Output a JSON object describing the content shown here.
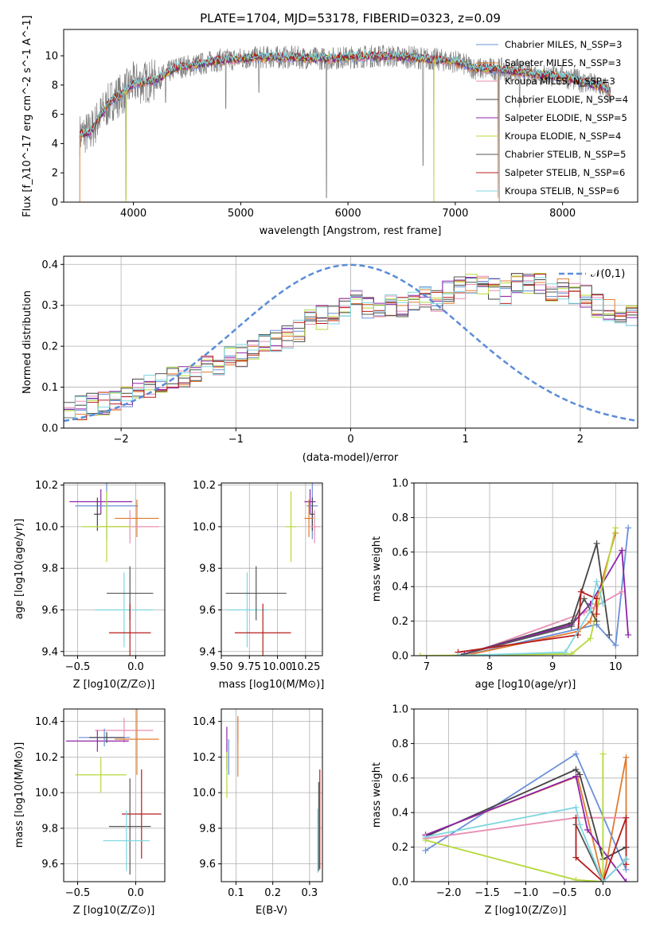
{
  "colors": {
    "chabrier_miles": "#6a8fd8",
    "salpeter_miles": "#e07b2e",
    "kroupa_miles": "#e88fb4",
    "chabrier_elodie": "#444444",
    "salpeter_elodie": "#8e24aa",
    "kroupa_elodie": "#b5d93a",
    "chabrier_stelib": "#555555",
    "salpeter_stelib": "#b71c1c",
    "kroupa_stelib": "#7fd6e0",
    "spectrum_data": "#808080",
    "normal_curve": "#5b8cd8",
    "grid": "#b0b0b0"
  },
  "chart_data": [
    {
      "id": "spectrum",
      "type": "line",
      "title": "PLATE=1704, MJD=53178, FIBERID=0323, z=0.09",
      "xlabel": "wavelength [Angstrom, rest frame]",
      "ylabel": "Flux [f_λ10^-17 erg cm^-2 s^-1 A^-1]",
      "xlim": [
        3350,
        8700
      ],
      "ylim": [
        0,
        11.8
      ],
      "xticks": [
        4000,
        5000,
        6000,
        7000,
        8000
      ],
      "yticks": [
        0,
        2,
        4,
        6,
        8,
        10
      ],
      "grid": false,
      "legend_position": "top-right",
      "series": [
        {
          "name": "Chabrier MILES, N_SSP=3",
          "color_key": "chabrier_miles"
        },
        {
          "name": "Salpeter MILES, N_SSP=3",
          "color_key": "salpeter_miles"
        },
        {
          "name": "Kroupa MILES, N_SSP=3",
          "color_key": "kroupa_miles"
        },
        {
          "name": "Chabrier ELODIE, N_SSP=4",
          "color_key": "chabrier_elodie"
        },
        {
          "name": "Salpeter ELODIE, N_SSP=5",
          "color_key": "salpeter_elodie"
        },
        {
          "name": "Kroupa ELODIE, N_SSP=4",
          "color_key": "kroupa_elodie"
        },
        {
          "name": "Chabrier STELIB, N_SSP=5",
          "color_key": "chabrier_stelib"
        },
        {
          "name": "Salpeter STELIB, N_SSP=6",
          "color_key": "salpeter_stelib"
        },
        {
          "name": "Kroupa STELIB, N_SSP=6",
          "color_key": "kroupa_stelib"
        }
      ],
      "continuum_points": [
        [
          3500,
          4.6
        ],
        [
          3600,
          4.8
        ],
        [
          3700,
          6.0
        ],
        [
          3800,
          7.0
        ],
        [
          3900,
          7.4
        ],
        [
          4000,
          8.1
        ],
        [
          4200,
          8.3
        ],
        [
          4400,
          9.2
        ],
        [
          4600,
          9.4
        ],
        [
          4800,
          9.7
        ],
        [
          5000,
          9.8
        ],
        [
          5200,
          9.9
        ],
        [
          5500,
          9.9
        ],
        [
          5800,
          9.8
        ],
        [
          6000,
          9.9
        ],
        [
          6300,
          10.0
        ],
        [
          6600,
          9.9
        ],
        [
          7000,
          9.6
        ],
        [
          7200,
          9.1
        ],
        [
          7400,
          9.1
        ],
        [
          7600,
          8.9
        ],
        [
          7800,
          8.7
        ],
        [
          8000,
          8.6
        ],
        [
          8200,
          8.2
        ],
        [
          8400,
          7.8
        ],
        [
          8450,
          7.4
        ]
      ],
      "absorption_dips": [
        [
          3930,
          0.2
        ],
        [
          4300,
          6.8
        ],
        [
          4860,
          6.4
        ],
        [
          5170,
          7.5
        ],
        [
          5800,
          0.3
        ],
        [
          6700,
          2.5
        ],
        [
          6800,
          0.2
        ],
        [
          7400,
          0.3
        ],
        [
          7600,
          6.5
        ]
      ]
    },
    {
      "id": "residuals",
      "type": "histogram",
      "xlabel": "(data-model)/error",
      "ylabel": "Normed distribution",
      "xlim": [
        -2.5,
        2.5
      ],
      "ylim": [
        0,
        0.42
      ],
      "xticks": [
        -2,
        -1,
        0,
        1,
        2
      ],
      "yticks": [
        0.0,
        0.1,
        0.2,
        0.3,
        0.4
      ],
      "grid": true,
      "legend_position": "top-right",
      "legend_label": "𝒩(0,1)",
      "bin_width": 0.1,
      "base_density": [
        0.05,
        0.05,
        0.06,
        0.06,
        0.07,
        0.08,
        0.09,
        0.1,
        0.11,
        0.12,
        0.13,
        0.14,
        0.15,
        0.16,
        0.17,
        0.18,
        0.19,
        0.2,
        0.21,
        0.22,
        0.24,
        0.26,
        0.27,
        0.28,
        0.3,
        0.31,
        0.29,
        0.28,
        0.3,
        0.3,
        0.31,
        0.32,
        0.31,
        0.33,
        0.34,
        0.35,
        0.35,
        0.34,
        0.33,
        0.35,
        0.35,
        0.35,
        0.33,
        0.34,
        0.33,
        0.32,
        0.3,
        0.29,
        0.28,
        0.27,
        0.26,
        0.24,
        0.22,
        0.21,
        0.2,
        0.19,
        0.17,
        0.15,
        0.14,
        0.13,
        0.12,
        0.11,
        0.1,
        0.09,
        0.08,
        0.08,
        0.07,
        0.06,
        0.05,
        0.05
      ]
    },
    {
      "id": "age_vs_Z",
      "type": "errorbar",
      "xlabel": "Z [log10(Z/Z⊙)]",
      "ylabel": "age [log10(age/yr)]",
      "xlim": [
        -0.62,
        0.25
      ],
      "ylim": [
        9.38,
        10.21
      ],
      "xticks": [
        -0.5,
        0.0
      ],
      "yticks": [
        9.4,
        9.6,
        9.8,
        10.0,
        10.2
      ],
      "grid": true,
      "points": [
        {
          "c": "salpeter_elodie",
          "x": -0.3,
          "xerr": 0.27,
          "y": 10.12,
          "yerr": 0.06
        },
        {
          "c": "chabrier_miles",
          "x": -0.25,
          "xerr": 0.27,
          "y": 10.1,
          "yerr": 0.16
        },
        {
          "c": "chabrier_elodie",
          "x": -0.33,
          "xerr": 0.03,
          "y": 10.06,
          "yerr": 0.08
        },
        {
          "c": "salpeter_miles",
          "x": 0.01,
          "xerr": 0.19,
          "y": 10.04,
          "yerr": 0.09
        },
        {
          "c": "kroupa_miles",
          "x": -0.05,
          "xerr": 0.25,
          "y": 10.0,
          "yerr": 0.08
        },
        {
          "c": "kroupa_elodie",
          "x": -0.25,
          "xerr": 0.22,
          "y": 10.0,
          "yerr": 0.17
        },
        {
          "c": "kroupa_stelib",
          "x": -0.1,
          "xerr": 0.25,
          "y": 9.6,
          "yerr": 0.18
        },
        {
          "c": "chabrier_stelib",
          "x": -0.05,
          "xerr": 0.2,
          "y": 9.68,
          "yerr": 0.13
        },
        {
          "c": "salpeter_stelib",
          "x": -0.05,
          "xerr": 0.18,
          "y": 9.49,
          "yerr": 0.14
        }
      ]
    },
    {
      "id": "age_vs_mass",
      "type": "errorbar",
      "xlabel": "mass [log10(M/M⊙)]",
      "ylabel": "",
      "xlim": [
        9.5,
        10.4
      ],
      "ylim": [
        9.38,
        10.21
      ],
      "xticks": [
        9.5,
        9.75,
        10.0,
        10.25
      ],
      "xticklabels": [
        "9.50",
        "9.75",
        "10.00",
        "10.25"
      ],
      "yticks": [
        9.4,
        9.6,
        9.8,
        10.0,
        10.2
      ],
      "grid": true,
      "points": [
        {
          "c": "salpeter_elodie",
          "x": 10.29,
          "xerr": 0.05,
          "y": 10.12,
          "yerr": 0.06
        },
        {
          "c": "chabrier_miles",
          "x": 10.31,
          "xerr": 0.05,
          "y": 10.1,
          "yerr": 0.16
        },
        {
          "c": "chabrier_elodie",
          "x": 10.31,
          "xerr": 0.02,
          "y": 10.06,
          "yerr": 0.08
        },
        {
          "c": "salpeter_miles",
          "x": 10.28,
          "xerr": 0.04,
          "y": 10.04,
          "yerr": 0.09
        },
        {
          "c": "kroupa_miles",
          "x": 10.33,
          "xerr": 0.05,
          "y": 10.0,
          "yerr": 0.08
        },
        {
          "c": "kroupa_elodie",
          "x": 10.12,
          "xerr": 0.05,
          "y": 10.0,
          "yerr": 0.17
        },
        {
          "c": "kroupa_stelib",
          "x": 9.73,
          "xerr": 0.18,
          "y": 9.6,
          "yerr": 0.18
        },
        {
          "c": "chabrier_stelib",
          "x": 9.81,
          "xerr": 0.27,
          "y": 9.68,
          "yerr": 0.13
        },
        {
          "c": "salpeter_stelib",
          "x": 9.87,
          "xerr": 0.25,
          "y": 9.49,
          "yerr": 0.14
        }
      ]
    },
    {
      "id": "mw_vs_age",
      "type": "line",
      "xlabel": "age [log10(age/yr)]",
      "ylabel": "mass weight",
      "xlim": [
        6.8,
        10.35
      ],
      "ylim": [
        0,
        1.0
      ],
      "xticks": [
        7,
        8,
        9,
        10
      ],
      "yticks": [
        0.0,
        0.2,
        0.4,
        0.6,
        0.8,
        1.0
      ],
      "grid": true,
      "series": [
        {
          "c": "chabrier_miles",
          "points": [
            [
              7.6,
              0.0
            ],
            [
              9.7,
              0.18
            ],
            [
              10.0,
              0.06
            ],
            [
              10.2,
              0.74
            ]
          ]
        },
        {
          "c": "salpeter_miles",
          "points": [
            [
              7.6,
              0.0
            ],
            [
              9.4,
              0.14
            ],
            [
              9.6,
              0.2
            ],
            [
              10.0,
              0.71
            ]
          ]
        },
        {
          "c": "kroupa_miles",
          "points": [
            [
              7.6,
              0.0
            ],
            [
              9.5,
              0.25
            ],
            [
              10.1,
              0.37
            ]
          ]
        },
        {
          "c": "chabrier_elodie",
          "points": [
            [
              7.6,
              0.01
            ],
            [
              9.3,
              0.19
            ],
            [
              9.7,
              0.65
            ],
            [
              9.9,
              0.12
            ]
          ]
        },
        {
          "c": "salpeter_elodie",
          "points": [
            [
              7.6,
              0.01
            ],
            [
              9.3,
              0.18
            ],
            [
              9.6,
              0.3
            ],
            [
              10.1,
              0.61
            ],
            [
              10.2,
              0.12
            ]
          ]
        },
        {
          "c": "kroupa_elodie",
          "points": [
            [
              6.9,
              0.0
            ],
            [
              9.3,
              0.01
            ],
            [
              9.6,
              0.1
            ],
            [
              10.0,
              0.74
            ]
          ]
        },
        {
          "c": "chabrier_stelib",
          "points": [
            [
              7.5,
              0.0
            ],
            [
              9.3,
              0.17
            ],
            [
              9.5,
              0.33
            ],
            [
              9.7,
              0.2
            ]
          ]
        },
        {
          "c": "salpeter_stelib",
          "points": [
            [
              7.5,
              0.02
            ],
            [
              9.4,
              0.12
            ],
            [
              9.45,
              0.37
            ],
            [
              9.7,
              0.33
            ],
            [
              9.7,
              0.24
            ]
          ]
        },
        {
          "c": "kroupa_stelib",
          "points": [
            [
              7.5,
              0.0
            ],
            [
              9.2,
              0.02
            ],
            [
              9.6,
              0.26
            ],
            [
              9.7,
              0.43
            ],
            [
              9.8,
              0.3
            ]
          ]
        }
      ]
    },
    {
      "id": "mass_vs_Z",
      "type": "errorbar",
      "xlabel": "Z [log10(Z/Z⊙)]",
      "ylabel": "mass [log10(M/M⊙)]",
      "xlim": [
        -0.62,
        0.25
      ],
      "ylim": [
        9.5,
        10.47
      ],
      "xticks": [
        -0.5,
        0.0
      ],
      "yticks": [
        9.6,
        9.8,
        10.0,
        10.2,
        10.4
      ],
      "grid": true,
      "points": [
        {
          "c": "kroupa_miles",
          "x": -0.1,
          "xerr": 0.25,
          "y": 10.35,
          "yerr": 0.07
        },
        {
          "c": "salpeter_elodie",
          "x": -0.33,
          "xerr": 0.27,
          "y": 10.29,
          "yerr": 0.06
        },
        {
          "c": "chabrier_miles",
          "x": -0.27,
          "xerr": 0.22,
          "y": 10.31,
          "yerr": 0.05
        },
        {
          "c": "chabrier_elodie",
          "x": -0.25,
          "xerr": 0.15,
          "y": 10.31,
          "yerr": 0.03
        },
        {
          "c": "salpeter_miles",
          "x": 0.01,
          "xerr": 0.19,
          "y": 10.3,
          "yerr": 0.2
        },
        {
          "c": "kroupa_elodie",
          "x": -0.3,
          "xerr": 0.22,
          "y": 10.1,
          "yerr": 0.1
        },
        {
          "c": "salpeter_stelib",
          "x": 0.05,
          "xerr": 0.17,
          "y": 9.88,
          "yerr": 0.25
        },
        {
          "c": "chabrier_stelib",
          "x": -0.05,
          "xerr": 0.18,
          "y": 9.81,
          "yerr": 0.27
        },
        {
          "c": "kroupa_stelib",
          "x": -0.08,
          "xerr": 0.2,
          "y": 9.73,
          "yerr": 0.17
        }
      ]
    },
    {
      "id": "mass_vs_ebv",
      "type": "errorbar",
      "xlabel": "E(B-V)",
      "ylabel": "",
      "xlim": [
        0.06,
        0.335
      ],
      "ylim": [
        9.5,
        10.47
      ],
      "xticks": [
        0.1,
        0.2,
        0.3
      ],
      "yticks": [
        9.6,
        9.8,
        10.0,
        10.2,
        10.4
      ],
      "grid": true,
      "points": [
        {
          "c": "kroupa_miles",
          "x": 0.105,
          "xerr": 0.0,
          "y": 10.35,
          "yerr": 0.07
        },
        {
          "c": "salpeter_miles",
          "x": 0.105,
          "xerr": 0.0,
          "y": 10.26,
          "yerr": 0.17
        },
        {
          "c": "chabrier_miles",
          "x": 0.08,
          "xerr": 0.0,
          "y": 10.2,
          "yerr": 0.1
        },
        {
          "c": "salpeter_elodie",
          "x": 0.075,
          "xerr": 0.0,
          "y": 10.25,
          "yerr": 0.12
        },
        {
          "c": "kroupa_elodie",
          "x": 0.075,
          "xerr": 0.0,
          "y": 10.1,
          "yerr": 0.13
        },
        {
          "c": "chabrier_stelib",
          "x": 0.325,
          "xerr": 0.0,
          "y": 9.81,
          "yerr": 0.25
        },
        {
          "c": "salpeter_stelib",
          "x": 0.328,
          "xerr": 0.0,
          "y": 9.85,
          "yerr": 0.28
        },
        {
          "c": "kroupa_stelib",
          "x": 0.322,
          "xerr": 0.0,
          "y": 9.73,
          "yerr": 0.18
        }
      ]
    },
    {
      "id": "mw_vs_Z",
      "type": "line",
      "xlabel": "Z [log10(Z/Z⊙)]",
      "ylabel": "mass weight",
      "xlim": [
        -2.45,
        0.45
      ],
      "ylim": [
        0,
        1.0
      ],
      "xticks": [
        -2.0,
        -1.5,
        -1.0,
        -0.5,
        0.0
      ],
      "yticks": [
        0.0,
        0.2,
        0.4,
        0.6,
        0.8,
        1.0
      ],
      "grid": true,
      "series": [
        {
          "c": "chabrier_miles",
          "points": [
            [
              -2.3,
              0.18
            ],
            [
              -0.35,
              0.74
            ],
            [
              0.3,
              0.07
            ]
          ]
        },
        {
          "c": "salpeter_miles",
          "points": [
            [
              -2.3,
              0.27
            ],
            [
              -0.33,
              0.61
            ],
            [
              0.0,
              0.0
            ],
            [
              0.3,
              0.72
            ],
            [
              0.3,
              0.2
            ]
          ]
        },
        {
          "c": "kroupa_miles",
          "points": [
            [
              -2.3,
              0.25
            ],
            [
              -0.35,
              0.37
            ],
            [
              0.3,
              0.37
            ]
          ]
        },
        {
          "c": "chabrier_elodie",
          "points": [
            [
              -2.3,
              0.26
            ],
            [
              -0.35,
              0.65
            ],
            [
              -0.3,
              0.62
            ],
            [
              0.0,
              0.13
            ],
            [
              0.3,
              0.2
            ]
          ]
        },
        {
          "c": "salpeter_elodie",
          "points": [
            [
              -2.3,
              0.27
            ],
            [
              -0.35,
              0.61
            ],
            [
              -0.2,
              0.3
            ],
            [
              0.3,
              0.0
            ]
          ]
        },
        {
          "c": "kroupa_elodie",
          "points": [
            [
              -2.3,
              0.24
            ],
            [
              -0.35,
              0.01
            ],
            [
              0.0,
              0.0
            ],
            [
              0.0,
              0.74
            ]
          ]
        },
        {
          "c": "chabrier_stelib",
          "points": [
            [
              -0.35,
              0.33
            ],
            [
              0.0,
              0.0
            ],
            [
              0.3,
              0.13
            ]
          ]
        },
        {
          "c": "salpeter_stelib",
          "points": [
            [
              -0.35,
              0.37
            ],
            [
              -0.35,
              0.14
            ],
            [
              0.0,
              0.0
            ],
            [
              0.3,
              0.37
            ],
            [
              0.3,
              0.1
            ]
          ]
        },
        {
          "c": "kroupa_stelib",
          "points": [
            [
              -2.3,
              0.26
            ],
            [
              -0.35,
              0.43
            ],
            [
              -0.3,
              0.33
            ],
            [
              0.0,
              0.0
            ],
            [
              0.3,
              0.13
            ]
          ]
        }
      ]
    }
  ]
}
